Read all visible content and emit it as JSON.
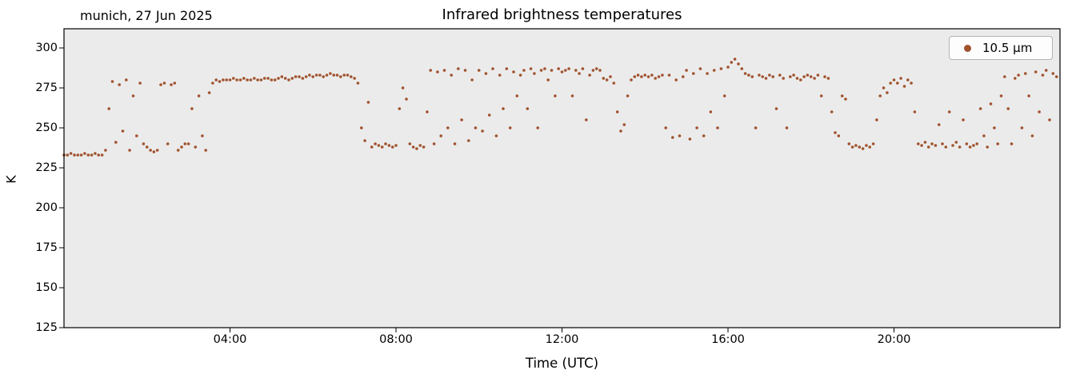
{
  "header": {
    "title": "Infrared brightness temperatures",
    "annotation": "munich, 27 Jun 2025"
  },
  "axes": {
    "xlabel": "Time (UTC)",
    "ylabel": "K"
  },
  "legend": {
    "label": "10.5 μm"
  },
  "chart_data": {
    "type": "scatter",
    "title": "Infrared brightness temperatures",
    "annotation": "munich, 27 Jun 2025",
    "xlabel": "Time (UTC)",
    "ylabel": "K",
    "xlim": [
      0,
      24
    ],
    "ylim": [
      125,
      312
    ],
    "plot_bg": "#EBEBEB",
    "grid": false,
    "legend_position": "upper right",
    "xticks": [
      {
        "value": 4,
        "label": "04:00"
      },
      {
        "value": 8,
        "label": "08:00"
      },
      {
        "value": 12,
        "label": "12:00"
      },
      {
        "value": 16,
        "label": "16:00"
      },
      {
        "value": 20,
        "label": "20:00"
      }
    ],
    "yticks": [
      125,
      150,
      175,
      200,
      225,
      250,
      275,
      300
    ],
    "series": [
      {
        "name": "10.5 μm",
        "color": "#A0522D",
        "marker": "dot",
        "x_start_hours": 0,
        "x_step_hours": 0.083333,
        "values": [
          233,
          233,
          234,
          233,
          233,
          233,
          234,
          233,
          233,
          234,
          233,
          233,
          236,
          262,
          279,
          241,
          277,
          248,
          280,
          236,
          270,
          245,
          278,
          240,
          238,
          236,
          235,
          236,
          277,
          278,
          240,
          277,
          278,
          236,
          238,
          240,
          240,
          262,
          238,
          270,
          245,
          236,
          272,
          278,
          280,
          279,
          280,
          280,
          280,
          281,
          280,
          280,
          281,
          280,
          280,
          281,
          280,
          280,
          281,
          281,
          280,
          280,
          281,
          282,
          281,
          280,
          281,
          282,
          282,
          281,
          282,
          283,
          282,
          283,
          283,
          282,
          283,
          284,
          283,
          283,
          282,
          283,
          283,
          282,
          281,
          278,
          250,
          242,
          266,
          238,
          240,
          239,
          238,
          240,
          239,
          238,
          239,
          262,
          275,
          268,
          240,
          238,
          237,
          239,
          238,
          260,
          286,
          240,
          285,
          245,
          286,
          250,
          283,
          240,
          287,
          255,
          286,
          242,
          280,
          250,
          286,
          248,
          284,
          258,
          287,
          245,
          283,
          262,
          287,
          250,
          285,
          270,
          283,
          286,
          262,
          287,
          284,
          250,
          286,
          287,
          280,
          286,
          270,
          287,
          285,
          286,
          287,
          270,
          286,
          284,
          287,
          255,
          283,
          286,
          287,
          286,
          281,
          280,
          282,
          278,
          260,
          248,
          252,
          270,
          280,
          282,
          283,
          282,
          283,
          282,
          283,
          281,
          282,
          283,
          250,
          283,
          244,
          280,
          245,
          282,
          286,
          243,
          284,
          250,
          287,
          245,
          284,
          260,
          286,
          250,
          287,
          270,
          288,
          291,
          293,
          290,
          287,
          284,
          283,
          282,
          250,
          283,
          282,
          281,
          283,
          282,
          262,
          283,
          281,
          250,
          282,
          283,
          281,
          280,
          282,
          283,
          282,
          281,
          283,
          270,
          282,
          281,
          260,
          247,
          245,
          270,
          268,
          240,
          238,
          239,
          238,
          237,
          239,
          238,
          240,
          255,
          270,
          275,
          272,
          278,
          280,
          278,
          281,
          276,
          280,
          278,
          260,
          240,
          239,
          241,
          238,
          240,
          239,
          252,
          240,
          238,
          260,
          239,
          241,
          238,
          255,
          240,
          238,
          239,
          240,
          262,
          245,
          238,
          265,
          250,
          240,
          270,
          282,
          262,
          240,
          281,
          283,
          250,
          284,
          270,
          245,
          285,
          260,
          283,
          286,
          255,
          284,
          282
        ]
      }
    ]
  }
}
